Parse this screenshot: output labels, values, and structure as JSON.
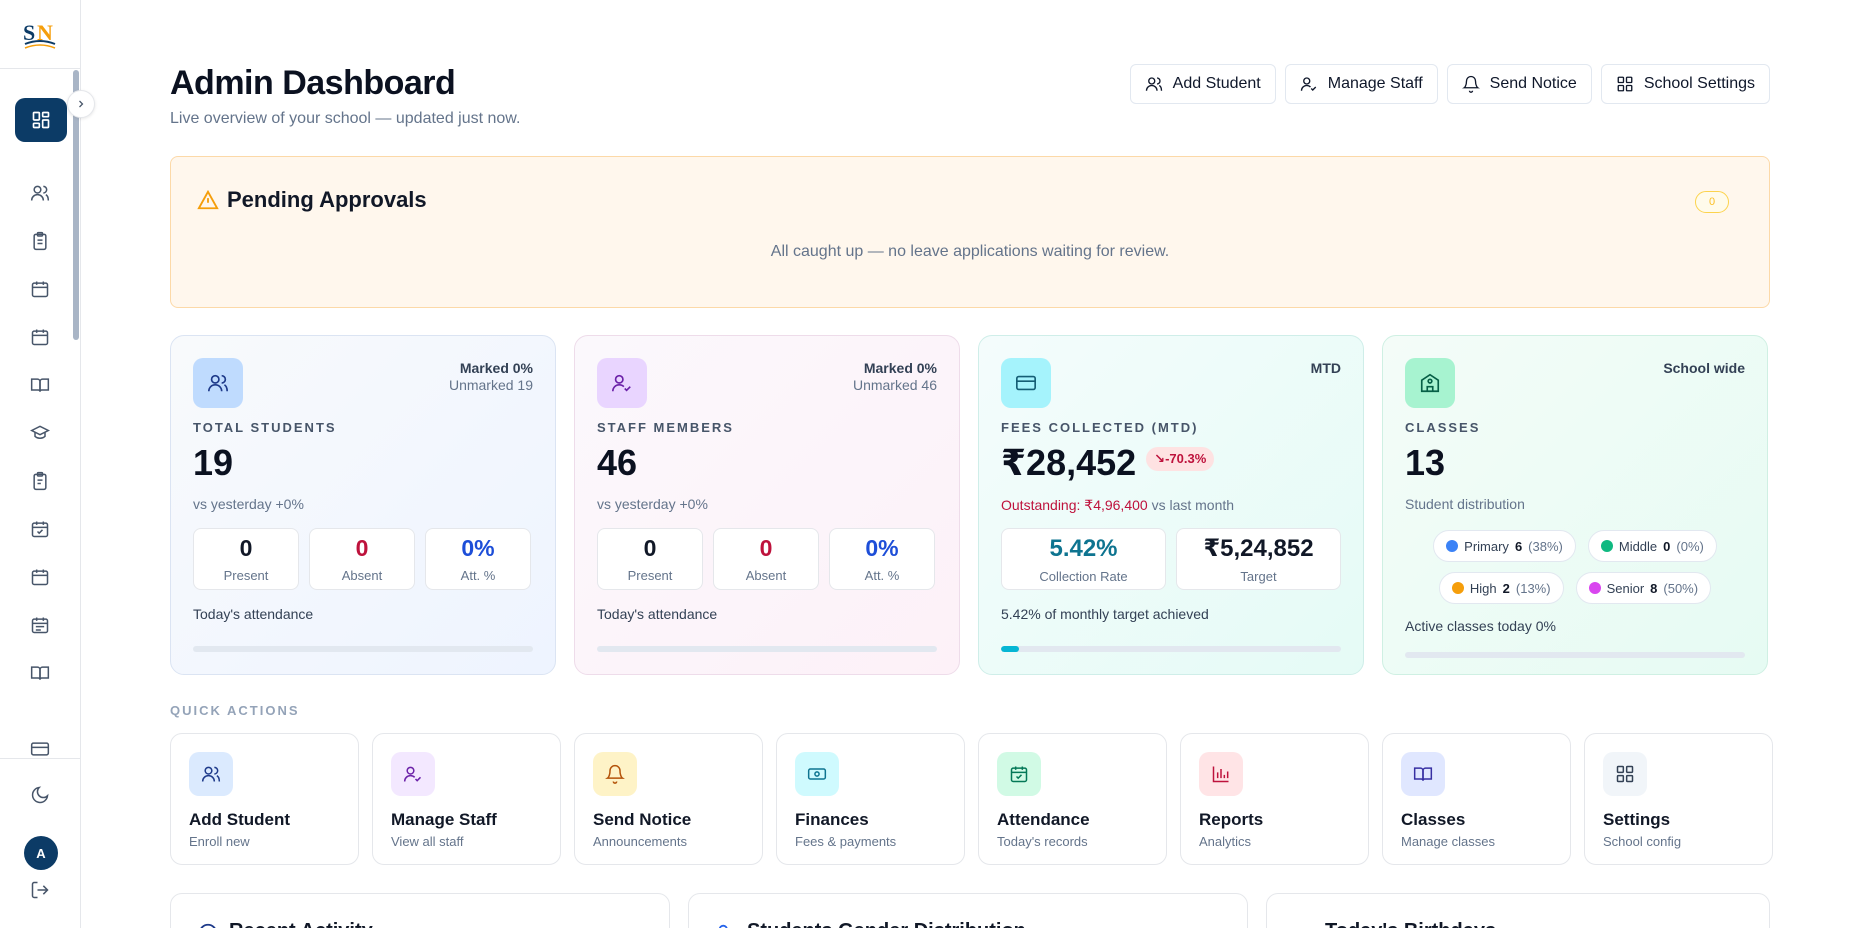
{
  "header": {
    "title": "Admin Dashboard",
    "subtitle": "Live overview of your school — updated just now.",
    "actions": [
      "Add Student",
      "Manage Staff",
      "Send Notice",
      "School Settings"
    ]
  },
  "user": {
    "initial": "A"
  },
  "pending": {
    "title": "Pending Approvals",
    "count": "0",
    "message": "All caught up — no leave applications waiting for review."
  },
  "stats": {
    "students": {
      "marked": "Marked 0%",
      "unmarked": "Unmarked 19",
      "label": "TOTAL STUDENTS",
      "value": "19",
      "sub": "vs yesterday +0%",
      "present": "0",
      "present_label": "Present",
      "absent": "0",
      "absent_label": "Absent",
      "att": "0%",
      "att_label": "Att. %",
      "foot": "Today's attendance",
      "progress": 0
    },
    "staff": {
      "marked": "Marked 0%",
      "unmarked": "Unmarked 46",
      "label": "STAFF MEMBERS",
      "value": "46",
      "sub": "vs yesterday +0%",
      "present": "0",
      "present_label": "Present",
      "absent": "0",
      "absent_label": "Absent",
      "att": "0%",
      "att_label": "Att. %",
      "foot": "Today's attendance",
      "progress": 0
    },
    "fees": {
      "tag": "MTD",
      "label": "FEES COLLECTED (MTD)",
      "value": "₹28,452",
      "trend": "↘-70.3%",
      "outstanding_label": "Outstanding:",
      "outstanding_value": "₹4,96,400",
      "outstanding_suffix": "vs last month",
      "rate": "5.42%",
      "rate_label": "Collection Rate",
      "target": "₹5,24,852",
      "target_label": "Target",
      "foot": "5.42% of monthly target achieved",
      "progress": 5.42
    },
    "classes": {
      "tag": "School wide",
      "label": "CLASSES",
      "value": "13",
      "sub": "Student distribution",
      "pills": [
        {
          "name": "Primary",
          "count": "6",
          "pct": "(38%)",
          "color": "#3b82f6"
        },
        {
          "name": "Middle",
          "count": "0",
          "pct": "(0%)",
          "color": "#10b981"
        },
        {
          "name": "High",
          "count": "2",
          "pct": "(13%)",
          "color": "#f59e0b"
        },
        {
          "name": "Senior",
          "count": "8",
          "pct": "(50%)",
          "color": "#d946ef"
        }
      ],
      "foot": "Active classes today 0%",
      "progress": 0
    }
  },
  "quick_actions": {
    "title": "QUICK ACTIONS",
    "items": [
      {
        "name": "Add Student",
        "desc": "Enroll new"
      },
      {
        "name": "Manage Staff",
        "desc": "View all staff"
      },
      {
        "name": "Send Notice",
        "desc": "Announcements"
      },
      {
        "name": "Finances",
        "desc": "Fees & payments"
      },
      {
        "name": "Attendance",
        "desc": "Today's records"
      },
      {
        "name": "Reports",
        "desc": "Analytics"
      },
      {
        "name": "Classes",
        "desc": "Manage classes"
      },
      {
        "name": "Settings",
        "desc": "School config"
      }
    ]
  },
  "bottom": {
    "cards": [
      "Recent Activity",
      "Students Gender Distribution",
      "Today's Birthdays"
    ]
  }
}
